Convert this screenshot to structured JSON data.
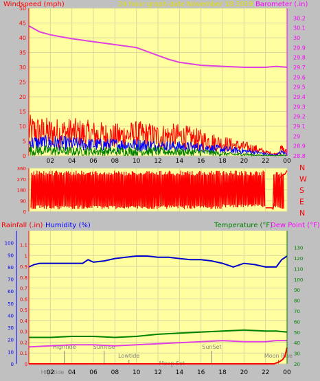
{
  "header": {
    "left_label": "Windspeed (mph)",
    "center_label": "24 hour graph date   November 18 2019",
    "right_label": "Barometer (.in)"
  },
  "bottom_header": {
    "rainfall_label": "Rainfall (.in)",
    "humidity_label": "Humidity (%)",
    "temperature_label": "Temperature (°F)",
    "dewpoint_label": "Dew Point (°F)"
  },
  "colors": {
    "plot_bg": "#ffffa0",
    "frame_bg": "#c0c0c0",
    "wind_gust": "#ff0000",
    "wind_avg": "#0000ff",
    "wind_low": "#008000",
    "barometer": "#e040e0",
    "direction": "#ff0000",
    "humidity": "#0000cc",
    "temperature": "#008000",
    "dewpoint": "#e040e0",
    "rain": "#ff0000",
    "tide": "#808080",
    "axis_red": "#ff0000",
    "axis_magenta": "#ff00ff",
    "axis_green": "#008000",
    "axis_blue": "#0000ff",
    "title_yellow": "#e0e000"
  },
  "chart_data": [
    {
      "type": "line",
      "id": "wind_pressure",
      "x_ticks": [
        "02",
        "04",
        "06",
        "08",
        "10",
        "12",
        "14",
        "16",
        "18",
        "20",
        "22",
        "00"
      ],
      "left_axis": {
        "ylim": [
          0,
          50
        ],
        "ticks": [
          "0",
          "5",
          "10",
          "15",
          "20",
          "25",
          "30",
          "35",
          "40",
          "45",
          "50"
        ]
      },
      "right_axis": {
        "ylim": [
          28.8,
          30.3
        ],
        "ticks": [
          "28.8",
          "28.9",
          "29",
          "29.1",
          "29.2",
          "29.3",
          "29.4",
          "29.5",
          "29.6",
          "29.7",
          "29.8",
          "29.9",
          "30",
          "30.1",
          "30.2"
        ]
      },
      "wind_envelope": {
        "hours": [
          0,
          2,
          4,
          6,
          8,
          10,
          12,
          14,
          16,
          17,
          18,
          19,
          20,
          21,
          22,
          23,
          23.5,
          24
        ],
        "gust_max": [
          14,
          13,
          13,
          12,
          11,
          12,
          11,
          11,
          9,
          8,
          7,
          6,
          5,
          4,
          2,
          1,
          4,
          2
        ],
        "avg_max": [
          7,
          7,
          6.5,
          6,
          6,
          6,
          5.5,
          5,
          4.5,
          4,
          3.5,
          3,
          2.5,
          2,
          1,
          0.5,
          2,
          1
        ],
        "low_max": [
          3.5,
          3.5,
          3,
          3,
          3,
          3,
          3,
          2.5,
          2.5,
          2,
          1.5,
          1,
          1,
          0.5,
          0.3,
          0.2,
          0.5,
          0.3
        ]
      },
      "barometer": {
        "hours": [
          0,
          1,
          2,
          3,
          4,
          6,
          8,
          10,
          11,
          12,
          13,
          14,
          16,
          18,
          20,
          22,
          23,
          24
        ],
        "values": [
          30.12,
          30.06,
          30.03,
          30.01,
          29.99,
          29.96,
          29.93,
          29.9,
          29.86,
          29.82,
          29.78,
          29.75,
          29.72,
          29.71,
          29.7,
          29.7,
          29.71,
          29.7
        ]
      }
    },
    {
      "type": "line",
      "id": "wind_direction",
      "left_axis": {
        "ylim": [
          0,
          360
        ],
        "ticks": [
          "0",
          "90",
          "180",
          "270",
          "360"
        ]
      },
      "right_labels": [
        "N",
        "W",
        "S",
        "E",
        "N"
      ],
      "segments": [
        {
          "start": 0.2,
          "end": 18.0,
          "low": 20,
          "high": 340
        },
        {
          "start": 18.0,
          "end": 22.0,
          "low": 30,
          "high": 340
        },
        {
          "start": 22.7,
          "end": 23.7,
          "low": 20,
          "high": 340
        }
      ],
      "points": [
        {
          "h": 22.0,
          "v": 30
        },
        {
          "h": 22.6,
          "v": 30
        },
        {
          "h": 22.7,
          "v": 20
        },
        {
          "h": 23.3,
          "v": 280
        },
        {
          "h": 23.6,
          "v": 300
        },
        {
          "h": 23.8,
          "v": 310
        },
        {
          "h": 24.0,
          "v": 340
        }
      ]
    },
    {
      "type": "line",
      "id": "humidity_temp",
      "x_ticks": [
        "02",
        "04",
        "06",
        "08",
        "10",
        "12",
        "14",
        "16",
        "18",
        "20",
        "22",
        "00"
      ],
      "rain_axis": {
        "ylim": [
          0,
          1.2
        ],
        "ticks": [
          "0",
          "0.1",
          "0.2",
          "0.3",
          "0.4",
          "0.5",
          "0.6",
          "0.7",
          "0.8",
          "0.9",
          "1",
          "1.1"
        ]
      },
      "humidity_axis": {
        "ylim": [
          0,
          100
        ],
        "ticks": [
          "0",
          "10",
          "20",
          "30",
          "40",
          "50",
          "60",
          "70",
          "80",
          "90",
          "100"
        ]
      },
      "temp_axis": {
        "ylim": [
          20,
          140
        ],
        "ticks": [
          "20",
          "30",
          "40",
          "50",
          "60",
          "70",
          "80",
          "90",
          "100",
          "110",
          "120",
          "130"
        ]
      },
      "humidity": {
        "hours": [
          0,
          0.5,
          1,
          2,
          3,
          4,
          5,
          5.5,
          6,
          7,
          8,
          9,
          10,
          11,
          12,
          13,
          14,
          15,
          16,
          17,
          18,
          19,
          20,
          21,
          22,
          23,
          23.5,
          24
        ],
        "values": [
          80,
          82,
          83,
          83,
          83,
          83,
          83,
          86,
          84,
          85,
          87,
          88,
          89,
          89,
          88,
          88,
          87,
          86,
          86,
          85,
          83,
          80,
          83,
          82,
          80,
          80,
          86,
          89
        ]
      },
      "temperature": {
        "hours": [
          0,
          2,
          4,
          6,
          8,
          10,
          12,
          14,
          16,
          18,
          20,
          22,
          23,
          24
        ],
        "values": [
          45,
          45,
          46,
          46,
          45,
          46,
          48,
          49,
          50,
          51,
          52,
          51,
          51,
          50
        ]
      },
      "dewpoint": {
        "hours": [
          0,
          2,
          4,
          6,
          8,
          10,
          12,
          14,
          16,
          18,
          20,
          22,
          23,
          24
        ],
        "values": [
          36,
          37,
          38,
          38,
          37,
          38,
          39,
          40,
          41,
          42,
          41,
          41,
          42,
          42
        ]
      },
      "rain": {
        "hours": [
          0,
          22.8,
          23.3,
          23.6,
          23.8,
          24
        ],
        "values": [
          0,
          0,
          0.02,
          0.04,
          0.07,
          0.15
        ]
      },
      "annotations": [
        {
          "label": "Hightide",
          "h": 3.3,
          "row": "upper"
        },
        {
          "label": "SunRise",
          "h": 7.0,
          "row": "upper"
        },
        {
          "label": "Lowtide",
          "h": 9.3,
          "row": "lower"
        },
        {
          "label": "Moon Set",
          "h": 13.3,
          "row": "bottom"
        },
        {
          "label": "SunSet",
          "h": 17.0,
          "row": "upper"
        },
        {
          "label": "Moon Rise",
          "h": 23.2,
          "row": "lower"
        },
        {
          "label": "Hightide",
          "h": 2.2,
          "row": "axis"
        }
      ]
    }
  ]
}
